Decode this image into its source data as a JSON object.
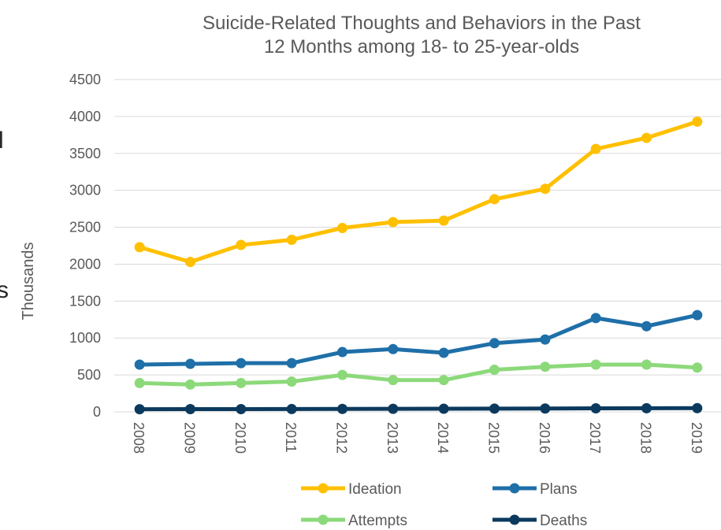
{
  "chart_data": {
    "type": "line",
    "title_lines": [
      "Suicide-Related Thoughts and Behaviors in the Past",
      "12 Months among 18- to 25-year-olds"
    ],
    "ylabel": "Thousands",
    "xlabel": "",
    "categories": [
      "2008",
      "2009",
      "2010",
      "2011",
      "2012",
      "2013",
      "2014",
      "2015",
      "2016",
      "2017",
      "2018",
      "2019"
    ],
    "ylim": [
      0,
      4500
    ],
    "yticks": [
      "0",
      "500",
      "1000",
      "1500",
      "2000",
      "2500",
      "3000",
      "3500",
      "4000",
      "4500"
    ],
    "grid": true,
    "legend_position": "bottom",
    "series": [
      {
        "name": "Ideation",
        "color": "#FFC000",
        "values": [
          2230,
          2030,
          2260,
          2330,
          2490,
          2570,
          2590,
          2880,
          3020,
          3560,
          3710,
          3930
        ]
      },
      {
        "name": "Plans",
        "color": "#1F6FA8",
        "values": [
          640,
          650,
          660,
          660,
          810,
          850,
          800,
          930,
          980,
          1270,
          1160,
          1310
        ]
      },
      {
        "name": "Attempts",
        "color": "#8CD97A",
        "values": [
          390,
          370,
          390,
          410,
          500,
          430,
          430,
          570,
          610,
          640,
          640,
          600
        ]
      },
      {
        "name": "Deaths",
        "color": "#0C3A5E",
        "values": [
          36,
          37,
          37,
          38,
          40,
          41,
          42,
          44,
          45,
          48,
          49,
          50
        ]
      }
    ]
  },
  "left_clip": {
    "char1": "l",
    "char2": "s"
  }
}
